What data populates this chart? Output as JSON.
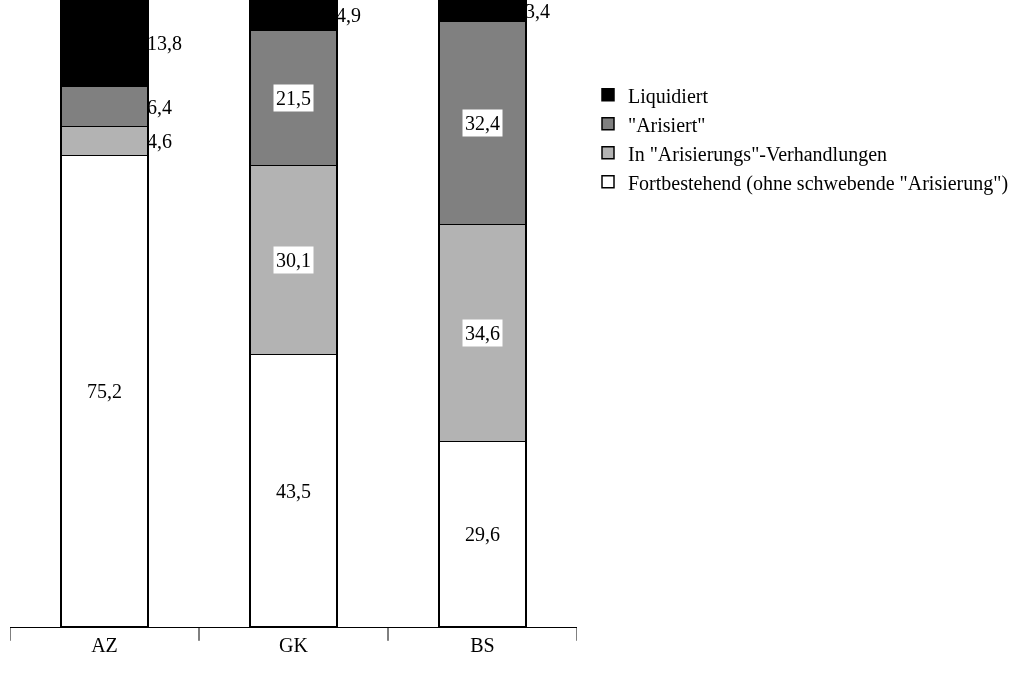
{
  "chart_data": {
    "type": "bar",
    "stacked": true,
    "categories": [
      "AZ",
      "GK",
      "BS"
    ],
    "series": [
      {
        "name": "Fortbestehend (ohne schwebende \"Arisierung\")",
        "color": "#ffffff",
        "values": [
          75.2,
          43.5,
          29.6
        ],
        "value_labels": [
          "75,2",
          "43,5",
          "29,6"
        ]
      },
      {
        "name": "In \"Arisierungs\"-Verhandlungen",
        "color": "#b3b3b3",
        "values": [
          4.6,
          30.1,
          34.6
        ],
        "value_labels": [
          "4,6",
          "30,1",
          "34,6"
        ]
      },
      {
        "name": "\"Arisiert\"",
        "color": "#808080",
        "values": [
          6.4,
          21.5,
          32.4
        ],
        "value_labels": [
          "6,4",
          "21,5",
          "32,4"
        ]
      },
      {
        "name": "Liquidiert",
        "color": "#000000",
        "values": [
          13.8,
          4.9,
          3.4
        ],
        "value_labels": [
          "13,8",
          "4,9",
          "3,4"
        ]
      }
    ],
    "ylim": [
      0,
      100
    ],
    "tick_labels": "x",
    "legend": "right"
  }
}
